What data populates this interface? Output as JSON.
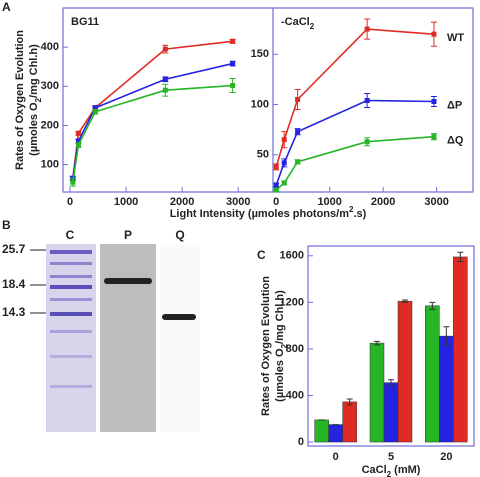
{
  "panel_labels": [
    "A",
    "B",
    "C"
  ],
  "gel": {
    "lanes": [
      "C",
      "P",
      "Q"
    ],
    "markers": [
      "25.7",
      "18.4",
      "14.3"
    ]
  },
  "chart_data": [
    {
      "type": "line",
      "title": "BG11",
      "ylabel": [
        "Rates of Oxygen Evolution",
        [
          "(µmoles O",
          "2",
          "/mg Chl.h)"
        ]
      ],
      "xlabel": [
        "Light Intensity (µmoles photons/m",
        "2",
        ".s)"
      ],
      "x": [
        50,
        150,
        450,
        1700,
        2900
      ],
      "xlim": [
        -125,
        3620
      ],
      "xticks": [
        0,
        1000,
        2000,
        3000
      ],
      "ylim": [
        30,
        500
      ],
      "yticks": [
        100,
        200,
        300,
        400
      ],
      "series": [
        {
          "color": "#e02b25",
          "values": [
            65,
            180,
            245,
            395,
            415
          ],
          "errors": [
            5,
            5,
            5,
            10,
            5
          ]
        },
        {
          "color": "#2323e0",
          "values": [
            65,
            160,
            245,
            318,
            358
          ],
          "errors": [
            5,
            5,
            5,
            6,
            6
          ]
        },
        {
          "color": "#25b525",
          "values": [
            55,
            150,
            235,
            290,
            302
          ],
          "errors": [
            10,
            6,
            6,
            15,
            18
          ]
        }
      ]
    },
    {
      "type": "line",
      "title": [
        "-CaCl",
        "2"
      ],
      "x": [
        0,
        150,
        400,
        1700,
        2950
      ],
      "xlim": [
        -60,
        3680
      ],
      "xticks": [
        0,
        1000,
        2000,
        3000
      ],
      "ylim": [
        13,
        196
      ],
      "yticks": [
        50,
        100,
        150
      ],
      "series": [
        {
          "name": "WT",
          "color": "#e02b25",
          "values": [
            38,
            65,
            105,
            175,
            170
          ],
          "errors": [
            3,
            8,
            10,
            10,
            12
          ]
        },
        {
          "name": "ΔP",
          "color": "#2323e0",
          "values": [
            20,
            42,
            73,
            104,
            103
          ],
          "errors": [
            2,
            4,
            3,
            7,
            5
          ]
        },
        {
          "name": "ΔQ",
          "color": "#25b525",
          "values": [
            15,
            22,
            43,
            63,
            68
          ],
          "errors": [
            1,
            2,
            2,
            4,
            3
          ]
        }
      ]
    },
    {
      "type": "bar",
      "ylabel": [
        "Rates of Oxygen Evolution",
        [
          "(µmoles O",
          "2",
          "/mg Chl.h)"
        ]
      ],
      "xlabel": [
        "CaCl",
        "2",
        " (mM)"
      ],
      "categories": [
        "0",
        "5",
        "20"
      ],
      "ylim": [
        -34,
        1684
      ],
      "yticks": [
        0,
        400,
        800,
        1200,
        1600
      ],
      "series": [
        {
          "color": "#25b525",
          "values": [
            190,
            850,
            1170
          ],
          "errors": [
            0,
            15,
            30
          ]
        },
        {
          "color": "#2323e0",
          "values": [
            150,
            510,
            910
          ],
          "errors": [
            0,
            25,
            80
          ]
        },
        {
          "color": "#e02b25",
          "values": [
            345,
            1210,
            1590
          ],
          "errors": [
            25,
            10,
            40
          ]
        }
      ]
    }
  ]
}
